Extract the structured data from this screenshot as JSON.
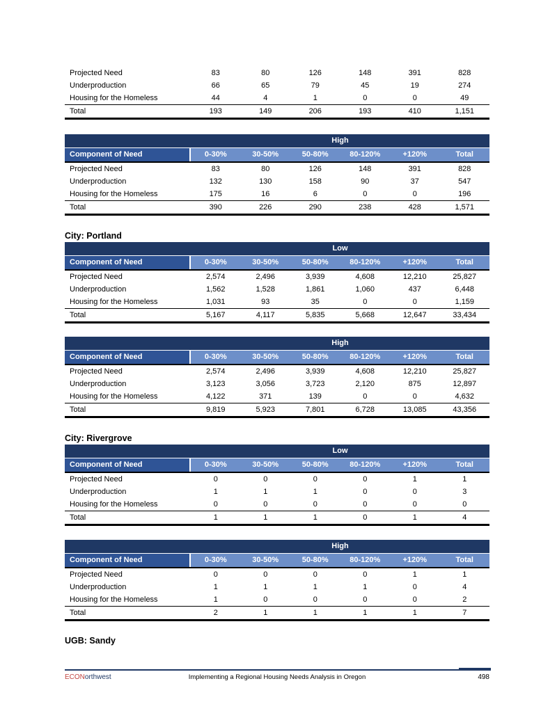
{
  "colors": {
    "band_bg": "#1F3864",
    "header_label_bg": "#2F5496",
    "header_value_bg": "#6D8FC9",
    "header_text": "#ffffff",
    "rule_navy": "#1F3864",
    "brand_red": "#C24540",
    "brand_navy": "#1F3864",
    "text": "#000000"
  },
  "header_label": "Component of Need",
  "columns": [
    "0-30%",
    "30-50%",
    "50-80%",
    "80-120%",
    "+120%",
    "Total"
  ],
  "headings": {
    "portland": "City: Portland",
    "rivergrove": "City: Rivergrove",
    "sandy": "UGB: Sandy"
  },
  "tables": [
    {
      "band": null,
      "rows": [
        {
          "label": "Projected Need",
          "values": [
            "83",
            "80",
            "126",
            "148",
            "391",
            "828"
          ]
        },
        {
          "label": "Underproduction",
          "values": [
            "66",
            "65",
            "79",
            "45",
            "19",
            "274"
          ]
        },
        {
          "label": "Housing for the Homeless",
          "values": [
            "44",
            "4",
            "1",
            "0",
            "0",
            "49"
          ]
        }
      ],
      "total": {
        "label": "Total",
        "values": [
          "193",
          "149",
          "206",
          "193",
          "410",
          "1,151"
        ]
      }
    },
    {
      "band": "High",
      "rows": [
        {
          "label": "Projected Need",
          "values": [
            "83",
            "80",
            "126",
            "148",
            "391",
            "828"
          ]
        },
        {
          "label": "Underproduction",
          "values": [
            "132",
            "130",
            "158",
            "90",
            "37",
            "547"
          ]
        },
        {
          "label": "Housing for the Homeless",
          "values": [
            "175",
            "16",
            "6",
            "0",
            "0",
            "196"
          ]
        }
      ],
      "total": {
        "label": "Total",
        "values": [
          "390",
          "226",
          "290",
          "238",
          "428",
          "1,571"
        ]
      }
    },
    {
      "band": "Low",
      "rows": [
        {
          "label": "Projected Need",
          "values": [
            "2,574",
            "2,496",
            "3,939",
            "4,608",
            "12,210",
            "25,827"
          ]
        },
        {
          "label": "Underproduction",
          "values": [
            "1,562",
            "1,528",
            "1,861",
            "1,060",
            "437",
            "6,448"
          ]
        },
        {
          "label": "Housing for the Homeless",
          "values": [
            "1,031",
            "93",
            "35",
            "0",
            "0",
            "1,159"
          ]
        }
      ],
      "total": {
        "label": "Total",
        "values": [
          "5,167",
          "4,117",
          "5,835",
          "5,668",
          "12,647",
          "33,434"
        ]
      }
    },
    {
      "band": "High",
      "rows": [
        {
          "label": "Projected Need",
          "values": [
            "2,574",
            "2,496",
            "3,939",
            "4,608",
            "12,210",
            "25,827"
          ]
        },
        {
          "label": "Underproduction",
          "values": [
            "3,123",
            "3,056",
            "3,723",
            "2,120",
            "875",
            "12,897"
          ]
        },
        {
          "label": "Housing for the Homeless",
          "values": [
            "4,122",
            "371",
            "139",
            "0",
            "0",
            "4,632"
          ]
        }
      ],
      "total": {
        "label": "Total",
        "values": [
          "9,819",
          "5,923",
          "7,801",
          "6,728",
          "13,085",
          "43,356"
        ]
      }
    },
    {
      "band": "Low",
      "rows": [
        {
          "label": "Projected Need",
          "values": [
            "0",
            "0",
            "0",
            "0",
            "1",
            "1"
          ]
        },
        {
          "label": "Underproduction",
          "values": [
            "1",
            "1",
            "1",
            "0",
            "0",
            "3"
          ]
        },
        {
          "label": "Housing for the Homeless",
          "values": [
            "0",
            "0",
            "0",
            "0",
            "0",
            "0"
          ]
        }
      ],
      "total": {
        "label": "Total",
        "values": [
          "1",
          "1",
          "1",
          "0",
          "1",
          "4"
        ]
      }
    },
    {
      "band": "High",
      "rows": [
        {
          "label": "Projected Need",
          "values": [
            "0",
            "0",
            "0",
            "0",
            "1",
            "1"
          ]
        },
        {
          "label": "Underproduction",
          "values": [
            "1",
            "1",
            "1",
            "1",
            "0",
            "4"
          ]
        },
        {
          "label": "Housing for the Homeless",
          "values": [
            "1",
            "0",
            "0",
            "0",
            "0",
            "2"
          ]
        }
      ],
      "total": {
        "label": "Total",
        "values": [
          "2",
          "1",
          "1",
          "1",
          "1",
          "7"
        ]
      }
    }
  ],
  "footer": {
    "brand_prefix": "ECON",
    "brand_suffix": "orthwest",
    "center": "Implementing a Regional Housing Needs Analysis in Oregon",
    "page_number": "498"
  }
}
